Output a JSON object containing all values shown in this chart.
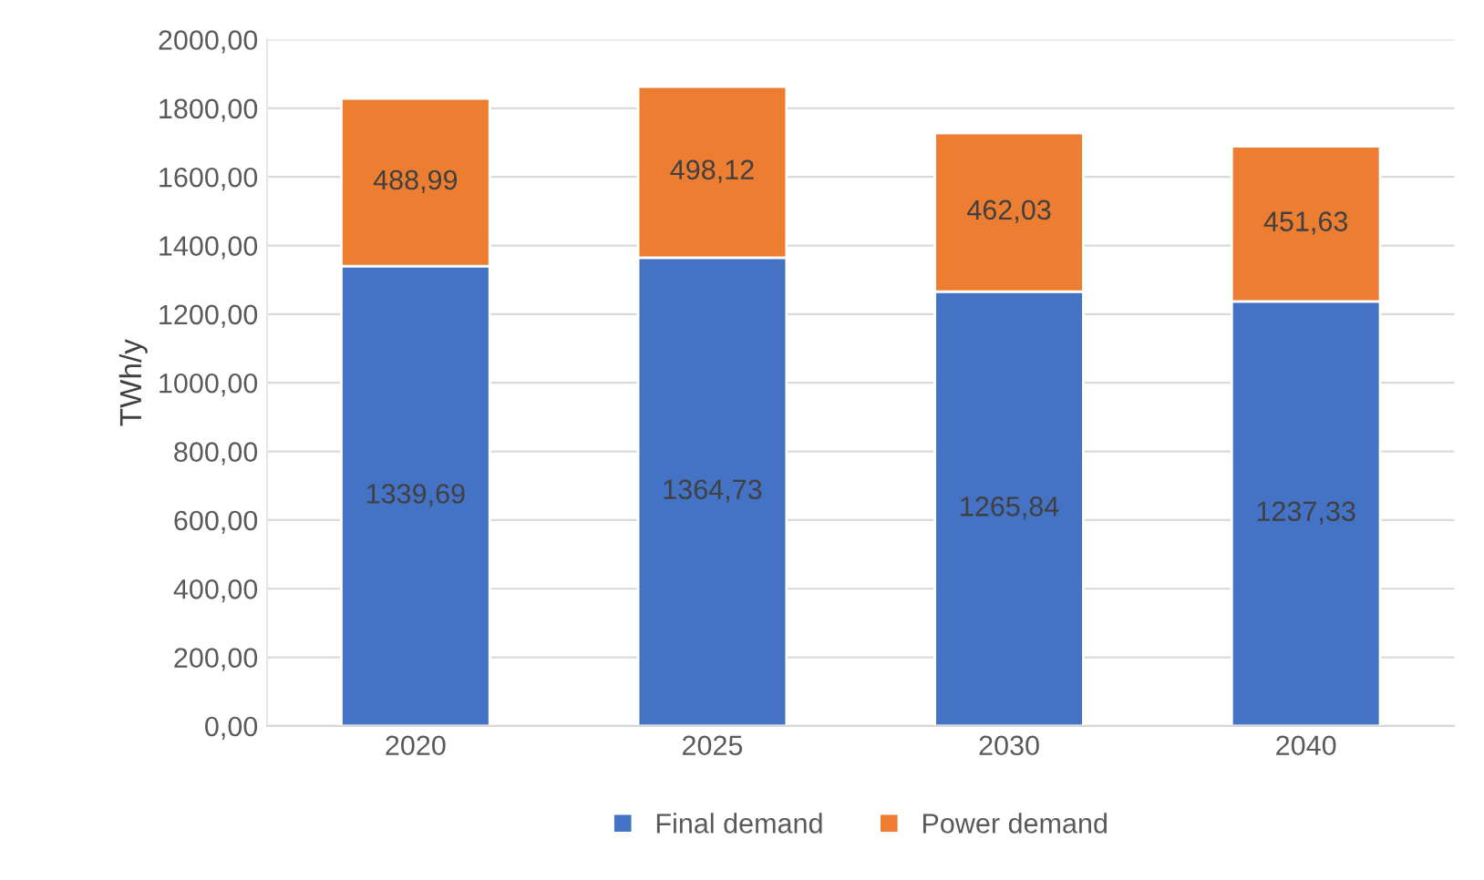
{
  "chart_data": {
    "type": "bar",
    "stacked": true,
    "ylabel": "TWh/y",
    "categories": [
      "2020",
      "2025",
      "2030",
      "2040"
    ],
    "series": [
      {
        "name": "Final demand",
        "color": "#4472c4",
        "values": [
          1339.69,
          1364.73,
          1265.84,
          1237.33
        ],
        "value_labels": [
          "1339,69",
          "1364,73",
          "1265,84",
          "1237,33"
        ]
      },
      {
        "name": "Power demand",
        "color": "#ed7d31",
        "values": [
          488.99,
          498.12,
          462.03,
          451.63
        ],
        "value_labels": [
          "488,99",
          "498,12",
          "462,03",
          "451,63"
        ]
      }
    ],
    "ylim": [
      0,
      2000
    ],
    "yticks": [
      {
        "value": 0,
        "label": "0,00"
      },
      {
        "value": 200,
        "label": "200,00"
      },
      {
        "value": 400,
        "label": "400,00"
      },
      {
        "value": 600,
        "label": "600,00"
      },
      {
        "value": 800,
        "label": "800,00"
      },
      {
        "value": 1000,
        "label": "1000,00"
      },
      {
        "value": 1200,
        "label": "1200,00"
      },
      {
        "value": 1400,
        "label": "1400,00"
      },
      {
        "value": 1600,
        "label": "1600,00"
      },
      {
        "value": 1800,
        "label": "1800,00"
      },
      {
        "value": 2000,
        "label": "2000,00"
      }
    ],
    "grid": "y",
    "legend": "bottom"
  }
}
